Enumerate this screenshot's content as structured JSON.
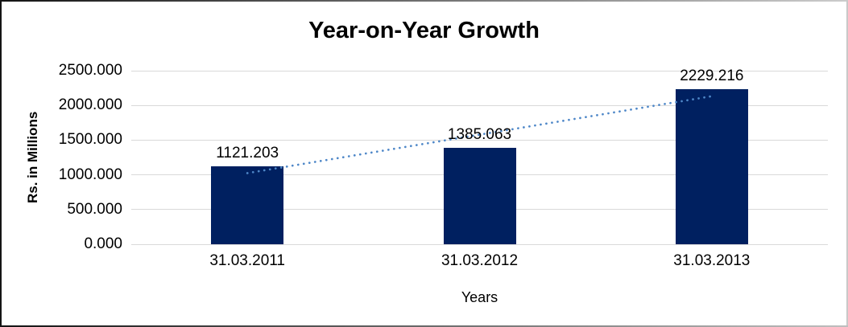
{
  "chart_data": {
    "type": "bar",
    "title": "Year-on-Year Growth",
    "xlabel": "Years",
    "ylabel": "Rs. in Millions",
    "categories": [
      "31.03.2011",
      "31.03.2012",
      "31.03.2013"
    ],
    "values": [
      1121.203,
      1385.063,
      2229.216
    ],
    "data_labels": [
      "1121.203",
      "1385.063",
      "2229.216"
    ],
    "ylim": [
      0,
      2500
    ],
    "yticks": [
      {
        "value": 2500,
        "label": "2500.000"
      },
      {
        "value": 2000,
        "label": "2000.000"
      },
      {
        "value": 1500,
        "label": "1500.000"
      },
      {
        "value": 1000,
        "label": "1000.000"
      },
      {
        "value": 500,
        "label": "500.000"
      },
      {
        "value": 0,
        "label": "0.000"
      }
    ],
    "grid": true,
    "legend_position": "none",
    "colors": {
      "bar": "#002060",
      "gridline": "#D9D9D9",
      "trendline": "#4E87C8",
      "text": "#000000",
      "background": "#FFFFFF"
    },
    "trendline": {
      "type": "linear",
      "style": "dotted"
    }
  }
}
